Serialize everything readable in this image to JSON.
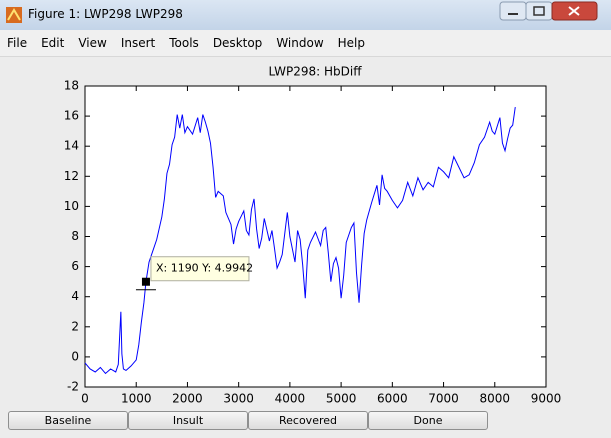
{
  "window": {
    "title": "Figure 1: LWP298 LWP298"
  },
  "menu": [
    "File",
    "Edit",
    "View",
    "Insert",
    "Tools",
    "Desktop",
    "Window",
    "Help"
  ],
  "buttons": [
    "Baseline",
    "Insult",
    "Recovered",
    "Done"
  ],
  "chart_data": {
    "type": "line",
    "title": "LWP298: HbDiff",
    "color": "#0000ff",
    "x": [
      0,
      100,
      200,
      300,
      400,
      500,
      600,
      650,
      700,
      720,
      750,
      800,
      900,
      1000,
      1050,
      1100,
      1150,
      1190,
      1250,
      1300,
      1400,
      1500,
      1550,
      1600,
      1650,
      1700,
      1750,
      1800,
      1850,
      1900,
      1950,
      2000,
      2100,
      2200,
      2250,
      2300,
      2350,
      2400,
      2450,
      2500,
      2550,
      2600,
      2700,
      2750,
      2800,
      2850,
      2900,
      2950,
      3000,
      3100,
      3150,
      3200,
      3250,
      3300,
      3350,
      3400,
      3450,
      3500,
      3600,
      3650,
      3700,
      3750,
      3800,
      3850,
      3900,
      3950,
      4000,
      4100,
      4150,
      4200,
      4250,
      4300,
      4350,
      4400,
      4500,
      4600,
      4650,
      4700,
      4750,
      4800,
      4850,
      4900,
      4950,
      5000,
      5050,
      5100,
      5200,
      5250,
      5300,
      5350,
      5400,
      5450,
      5500,
      5600,
      5700,
      5750,
      5800,
      5850,
      5900,
      6000,
      6100,
      6200,
      6300,
      6400,
      6500,
      6600,
      6700,
      6800,
      6900,
      7000,
      7100,
      7200,
      7300,
      7400,
      7500,
      7600,
      7700,
      7800,
      7900,
      7950,
      8000,
      8100,
      8150,
      8200,
      8250,
      8300,
      8350,
      8400
    ],
    "values": [
      -0.4,
      -0.8,
      -1.0,
      -0.7,
      -1.1,
      -0.8,
      -1.0,
      -0.5,
      3.0,
      0.2,
      -0.8,
      -0.9,
      -0.6,
      -0.2,
      0.8,
      2.3,
      3.6,
      4.9942,
      6.3,
      6.8,
      7.8,
      9.3,
      10.5,
      12.2,
      12.8,
      14.1,
      14.6,
      16.1,
      15.2,
      16.1,
      14.9,
      15.3,
      14.8,
      15.9,
      14.9,
      16.1,
      15.6,
      15.0,
      14.2,
      12.6,
      10.6,
      11.0,
      10.7,
      9.6,
      9.2,
      8.8,
      7.5,
      8.5,
      9.0,
      9.7,
      8.4,
      8.1,
      9.8,
      10.5,
      8.5,
      7.2,
      7.9,
      9.2,
      7.7,
      8.4,
      7.2,
      5.9,
      6.3,
      6.8,
      8.2,
      9.6,
      8.0,
      6.3,
      8.4,
      7.8,
      6.1,
      3.9,
      7.1,
      7.6,
      8.3,
      7.4,
      8.4,
      8.6,
      6.9,
      5.0,
      6.2,
      6.6,
      5.9,
      3.9,
      5.4,
      7.6,
      8.6,
      8.9,
      5.6,
      3.6,
      6.1,
      8.2,
      9.1,
      10.3,
      11.4,
      10.1,
      12.1,
      11.2,
      11.0,
      10.4,
      9.9,
      10.4,
      11.6,
      10.7,
      11.9,
      11.1,
      11.6,
      11.3,
      12.6,
      12.3,
      11.9,
      13.3,
      12.6,
      11.9,
      12.1,
      12.9,
      14.1,
      14.6,
      15.6,
      15.0,
      14.8,
      15.9,
      14.2,
      13.7,
      14.5,
      15.2,
      15.4,
      16.6
    ],
    "xlim": [
      0,
      9000
    ],
    "ylim": [
      -2,
      18
    ],
    "xticks": [
      0,
      1000,
      2000,
      3000,
      4000,
      5000,
      6000,
      7000,
      8000,
      9000
    ],
    "yticks": [
      -2,
      0,
      2,
      4,
      6,
      8,
      10,
      12,
      14,
      16,
      18
    ],
    "datatip": {
      "label": "X: 1190 Y: 4.9942",
      "x": 1190,
      "y": 4.9942
    }
  }
}
